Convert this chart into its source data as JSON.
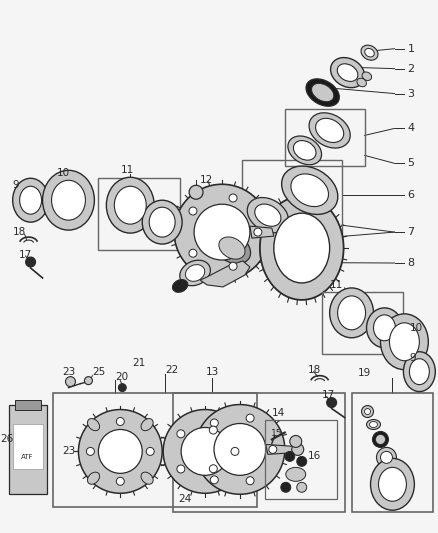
{
  "bg_color": "#f5f5f5",
  "lc": "#2a2a2a",
  "gray1": "#c8c8c8",
  "gray2": "#999999",
  "gray3": "#666666",
  "white": "#ffffff",
  "figsize": [
    4.38,
    5.33
  ],
  "dpi": 100
}
